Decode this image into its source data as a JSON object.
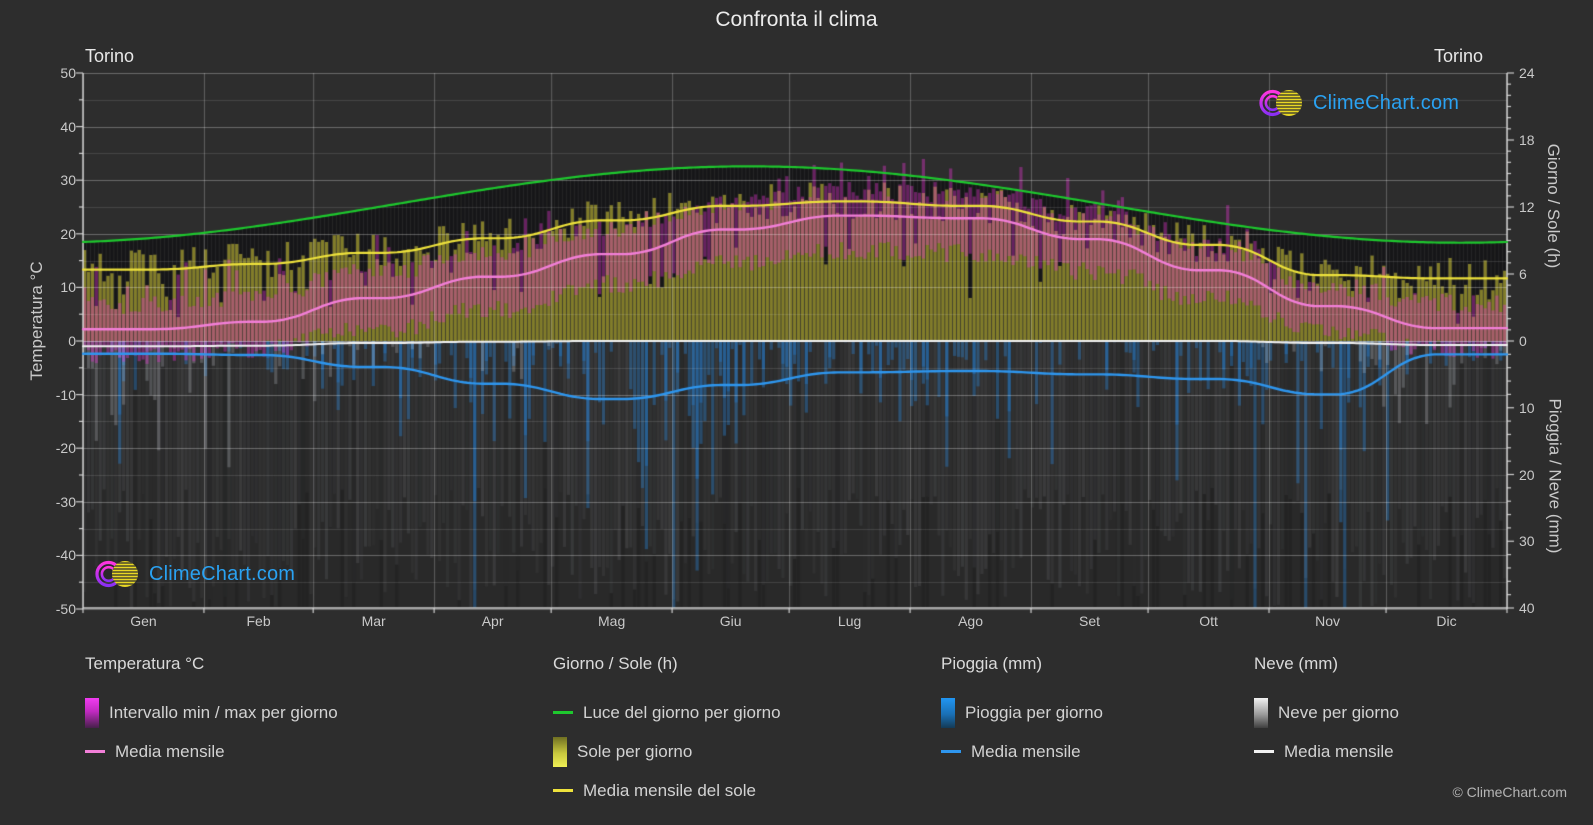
{
  "title": "Confronta il clima",
  "location_left": "Torino",
  "location_right": "Torino",
  "watermark": {
    "text": "ClimeChart.com",
    "copyright": "© ClimeChart.com"
  },
  "colors": {
    "background": "#2d2d2d",
    "below_zero_bg": "#292929",
    "daylight_line": "#1ec82e",
    "sun_bar": "rgba(187,179,40,0.60)",
    "sun_dark_cap": "rgba(21,21,23,0.92)",
    "sun_mean_line": "#eee23c",
    "temp_bar": "rgba(224,52,206,0.40)",
    "temp_mean_line": "#f27fd8",
    "rain_bar": "rgba(43,118,186,0.45)",
    "rain_mean_line": "#2e96ee",
    "snow_bar": "rgba(225,229,238,0.22)",
    "snow_mean_line": "#f2f2f2",
    "logo_text_blue": "#2aa2f2",
    "axis_text": "#c9c9c9"
  },
  "axes": {
    "temp": {
      "title": "Temperatura °C",
      "min": -50,
      "max": 50,
      "ticks": [
        50,
        40,
        30,
        20,
        10,
        0,
        -10,
        -20,
        -30,
        -40,
        -50
      ]
    },
    "sun": {
      "title": "Giorno / Sole (h)",
      "min": 0,
      "max": 24,
      "ticks": [
        24,
        18,
        12,
        6,
        0
      ]
    },
    "precip": {
      "title": "Pioggia / Neve (mm)",
      "min": 0,
      "max": 40,
      "ticks": [
        10,
        20,
        30,
        40
      ]
    }
  },
  "months": [
    "Gen",
    "Feb",
    "Mar",
    "Apr",
    "Mag",
    "Giu",
    "Lug",
    "Ago",
    "Set",
    "Ott",
    "Nov",
    "Dic"
  ],
  "chart_data": {
    "type": "area",
    "subtype": "climate-composite",
    "categories": [
      "Gen",
      "Feb",
      "Mar",
      "Apr",
      "Mag",
      "Giu",
      "Lug",
      "Ago",
      "Set",
      "Ott",
      "Nov",
      "Dic"
    ],
    "temp_axis_range": [
      -50,
      50
    ],
    "sun_axis_range": [
      0,
      24
    ],
    "precip_axis_range": [
      0,
      40
    ],
    "grid": true,
    "series": [
      {
        "key": "daylight",
        "name": "Luce del giorno per giorno",
        "type": "line",
        "unit": "h",
        "color": "#1ec82e",
        "values": [
          9.2,
          10.3,
          11.8,
          13.4,
          14.9,
          15.6,
          15.3,
          14.2,
          12.7,
          11.1,
          9.6,
          8.9
        ]
      },
      {
        "key": "sun_mean",
        "name": "Media mensile del sole / Sole per giorno",
        "type": "line+bar",
        "unit": "h",
        "color": "#eee23c",
        "values": [
          6.4,
          6.9,
          7.9,
          9.2,
          10.8,
          12.1,
          12.5,
          12.1,
          10.7,
          8.6,
          5.9,
          5.6
        ]
      },
      {
        "key": "temp_range",
        "name": "Intervallo min / max per giorno",
        "type": "bar-range",
        "unit": "°C",
        "color": "#e034ce",
        "min": [
          -2.5,
          -1.5,
          2.0,
          6.0,
          10.5,
          14.5,
          17.0,
          16.5,
          13.0,
          8.0,
          2.0,
          -1.5
        ],
        "max": [
          6.5,
          8.5,
          13.0,
          16.5,
          21.0,
          25.5,
          28.0,
          27.5,
          23.5,
          17.5,
          10.0,
          7.0
        ]
      },
      {
        "key": "temp_mean",
        "name": "Media mensile (temperatura)",
        "type": "line",
        "unit": "°C",
        "color": "#f27fd8",
        "values": [
          2.2,
          3.6,
          8.0,
          12.0,
          16.2,
          20.8,
          23.4,
          22.9,
          19.0,
          13.2,
          6.5,
          2.4
        ]
      },
      {
        "key": "rain_mean",
        "name": "Pioggia per giorno / Media mensile",
        "type": "bar+line",
        "unit": "mm",
        "color": "#2e96ee",
        "values": [
          1.9,
          2.1,
          3.9,
          6.4,
          8.7,
          6.6,
          4.7,
          4.5,
          5.0,
          5.7,
          8.0,
          2.0
        ]
      },
      {
        "key": "snow_mean",
        "name": "Neve per giorno / Media mensile",
        "type": "bar+line",
        "unit": "mm",
        "color": "#f2f2f2",
        "values": [
          0.8,
          0.7,
          0.3,
          0.1,
          0,
          0,
          0,
          0,
          0,
          0,
          0.3,
          0.6
        ]
      }
    ]
  },
  "legend": {
    "groups": [
      {
        "title": "Temperatura °C",
        "items": [
          {
            "swatch": "sw-magenta",
            "label": "Intervallo min / max per giorno"
          },
          {
            "swatch": "ln-pink",
            "label": "Media mensile"
          }
        ]
      },
      {
        "title": "Giorno / Sole (h)",
        "items": [
          {
            "swatch": "ln-green",
            "label": "Luce del giorno per giorno"
          },
          {
            "swatch": "sw-yellow",
            "label": "Sole per giorno"
          },
          {
            "swatch": "ln-yellow",
            "label": "Media mensile del sole"
          }
        ]
      },
      {
        "title": "Pioggia (mm)",
        "items": [
          {
            "swatch": "sw-blue",
            "label": "Pioggia per giorno"
          },
          {
            "swatch": "ln-blue",
            "label": "Media mensile"
          }
        ]
      },
      {
        "title": "Neve (mm)",
        "items": [
          {
            "swatch": "sw-gray",
            "label": "Neve per giorno"
          },
          {
            "swatch": "ln-white",
            "label": "Media mensile"
          }
        ]
      }
    ]
  }
}
